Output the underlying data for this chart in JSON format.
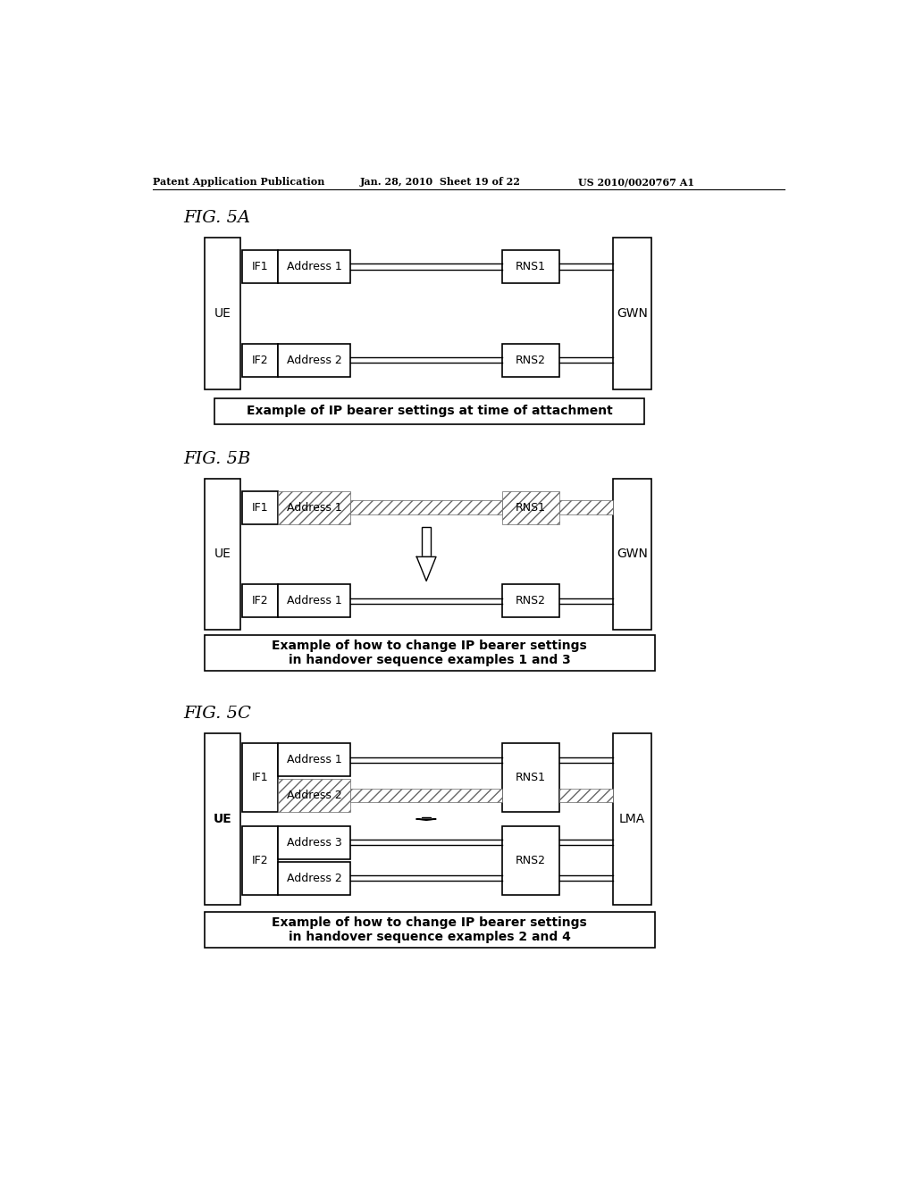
{
  "bg_color": "#ffffff",
  "header_left": "Patent Application Publication",
  "header_mid": "Jan. 28, 2010  Sheet 19 of 22",
  "header_right": "US 2010/0020767 A1",
  "fig5a_label": "FIG. 5A",
  "fig5b_label": "FIG. 5B",
  "fig5c_label": "FIG. 5C",
  "fig5a_caption": "Example of IP bearer settings at time of attachment",
  "fig5b_caption": "Example of how to change IP bearer settings\nin handover sequence examples 1 and 3",
  "fig5c_caption": "Example of how to change IP bearer settings\nin handover sequence examples 2 and 4"
}
